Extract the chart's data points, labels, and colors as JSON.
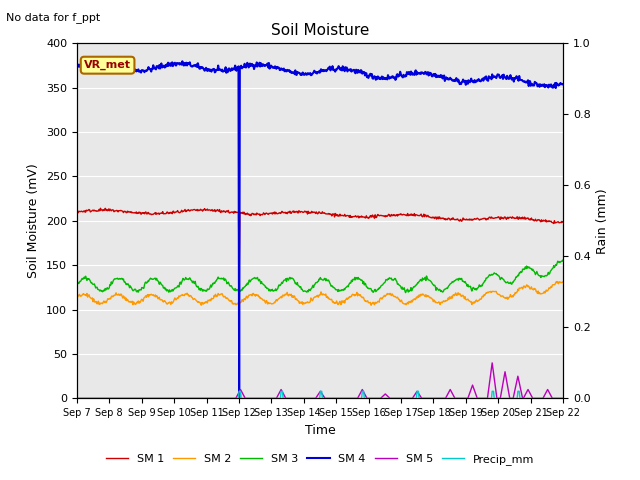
{
  "title": "Soil Moisture",
  "suptitle": "No data for f_ppt",
  "xlabel": "Time",
  "ylabel_left": "Soil Moisture (mV)",
  "ylabel_right": "Rain (mm)",
  "vr_met_label": "VR_met",
  "ylim_left": [
    0,
    400
  ],
  "ylim_right": [
    0,
    1.0
  ],
  "yticks_left": [
    0,
    50,
    100,
    150,
    200,
    250,
    300,
    350,
    400
  ],
  "yticks_right": [
    0.0,
    0.2,
    0.4,
    0.6,
    0.8,
    1.0
  ],
  "x_tick_labels": [
    "Sep 7",
    "Sep 8",
    "Sep 9",
    "Sep 10",
    "Sep 11",
    "Sep 12",
    "Sep 13",
    "Sep 14",
    "Sep 15",
    "Sep 16",
    "Sep 17",
    "Sep 18",
    "Sep 19",
    "Sep 20",
    "Sep 21",
    "Sep 22"
  ],
  "colors": {
    "SM1": "#cc0000",
    "SM2": "#ff9900",
    "SM3": "#00bb00",
    "SM4": "#0000dd",
    "SM5": "#bb00bb",
    "Precip": "#00cccc",
    "bg": "#e8e8e8"
  },
  "legend_labels": [
    "SM 1",
    "SM 2",
    "SM 3",
    "SM 4",
    "SM 5",
    "Precip_mm"
  ]
}
